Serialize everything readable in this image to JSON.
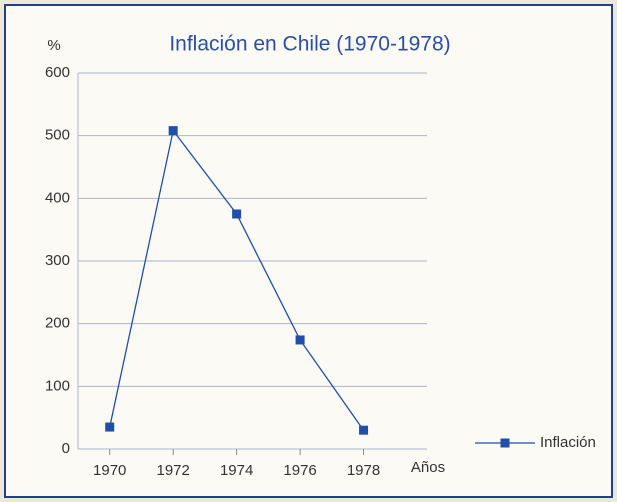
{
  "chart_data": {
    "type": "line",
    "title": "Inflación en Chile (1970-1978)",
    "y_label": "%",
    "x_label": "Años",
    "x": [
      1970,
      1972,
      1974,
      1976,
      1978
    ],
    "series": [
      {
        "name": "Inflación",
        "color": "#1f4fa8",
        "values": [
          35,
          508,
          375,
          174,
          30
        ]
      }
    ],
    "xlim": [
      1969,
      1980
    ],
    "xticks": [
      1970,
      1972,
      1974,
      1976,
      1978
    ],
    "ylim": [
      0,
      600
    ],
    "yticks": [
      0,
      100,
      200,
      300,
      400,
      500,
      600
    ],
    "grid": true,
    "legend": "lower right"
  }
}
